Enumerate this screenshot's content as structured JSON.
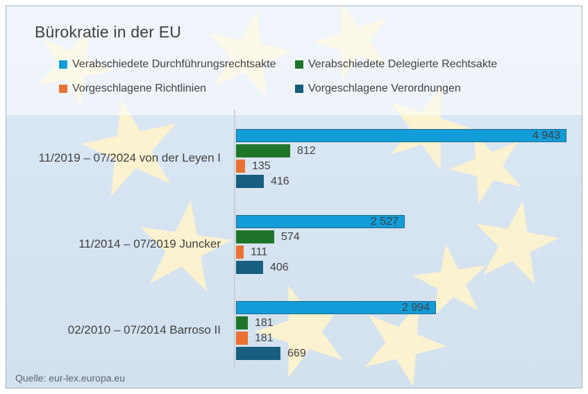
{
  "title": "Bürokratie in der EU",
  "source_note": "Quelle: eur-lex.europa.eu",
  "chart_data": {
    "type": "bar",
    "orientation": "horizontal",
    "title": "Bürokratie in der EU",
    "legend_position": "top",
    "grid": false,
    "xlim": [
      0,
      5200
    ],
    "number_format": "space-grouped-thousands",
    "categories": [
      "11/2019 – 07/2024 von der Leyen I",
      "11/2014 – 07/2019 Juncker",
      "02/2010 – 07/2014 Barroso II"
    ],
    "series": [
      {
        "name": "Verabschiedete Durchführungsrechtsakte",
        "color": "#129cd8",
        "values": [
          4943,
          2527,
          2994
        ]
      },
      {
        "name": "Verabschiedete Delegierte Rechtsakte",
        "color": "#1e752a",
        "values": [
          812,
          574,
          181
        ]
      },
      {
        "name": "Vorgeschlagene Richtlinien",
        "color": "#e97132",
        "values": [
          135,
          111,
          181
        ]
      },
      {
        "name": "Vorgeschlagene Verordnungen",
        "color": "#175e80",
        "values": [
          416,
          406,
          669
        ]
      }
    ]
  },
  "style": {
    "background_blue": "#d9e6f3",
    "star_yellow": "#fbf2cf",
    "axis_color": "#c9ced4",
    "text_color": "#404040"
  }
}
